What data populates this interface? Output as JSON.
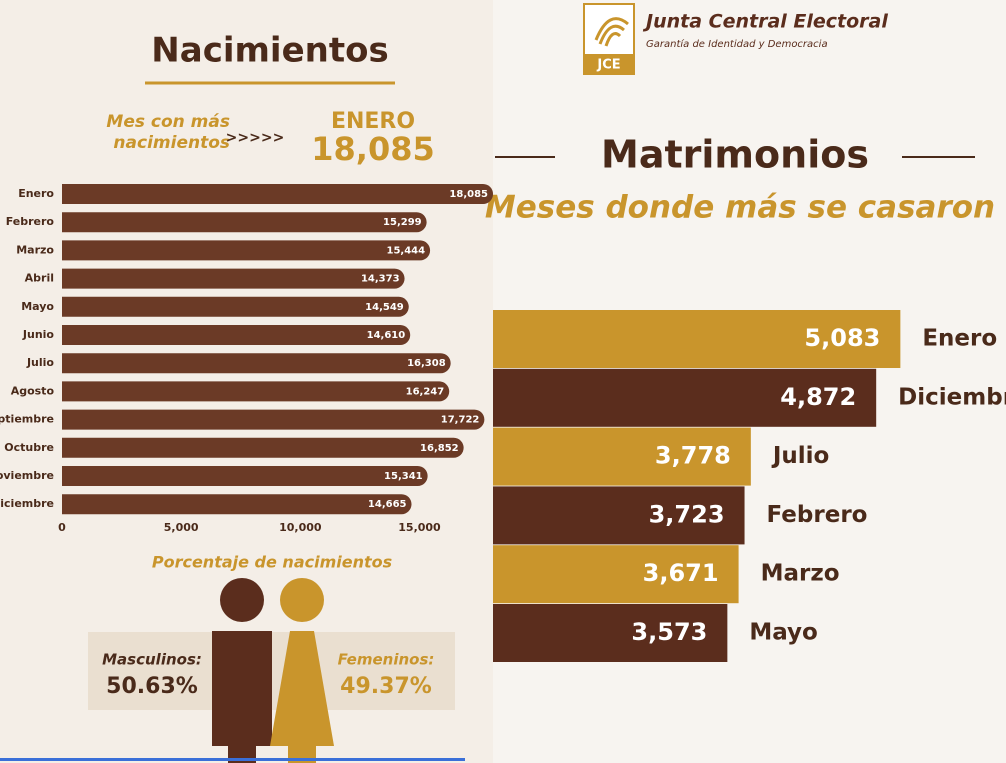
{
  "header": {
    "logo_mark": "JCE",
    "organization": "Junta Central Electoral",
    "tagline": "Garantía de Identidad y Democracia"
  },
  "births": {
    "title": "Nacimientos",
    "highlight_caption": "Mes con más nacimientos",
    "arrows": ">>>>>",
    "highlight_month": "ENERO",
    "highlight_value": "18,085",
    "percent_title": "Porcentaje de nacimientos",
    "male_label": "Masculinos:",
    "male_value": "50.63%",
    "female_label": "Femeninos:",
    "female_value": "49.37%"
  },
  "marriages": {
    "title": "Matrimonios",
    "subtitle": "Meses donde más se casaron"
  },
  "chart_data": [
    {
      "type": "hbar",
      "categories": [
        "Enero",
        "Febrero",
        "Marzo",
        "Abril",
        "Mayo",
        "Junio",
        "Julio",
        "Agosto",
        "Septiembre",
        "Octubre",
        "Noviembre",
        "Diciembre"
      ],
      "values": [
        18085,
        15299,
        15444,
        14373,
        14549,
        14610,
        16308,
        16247,
        17722,
        16852,
        15341,
        14665
      ],
      "value_labels": [
        "18,085",
        "15,299",
        "15,444",
        "14,373",
        "14,549",
        "14,610",
        "16,308",
        "16,247",
        "17,722",
        "16,852",
        "15,341",
        "14,665"
      ],
      "color": "#6b3a26",
      "xlim": [
        0,
        18000
      ],
      "xticks": [
        0,
        {
          "value": 5000,
          "label": "5,000"
        },
        {
          "value": 10000,
          "label": "10,000"
        },
        {
          "value": 15000,
          "label": "15,000"
        }
      ]
    },
    {
      "type": "hbar-big",
      "categories": [
        "Enero",
        "Diciembre",
        "Julio",
        "Febrero",
        "Marzo",
        "Mayo"
      ],
      "values": [
        5083,
        4872,
        3778,
        3723,
        3671,
        3573
      ],
      "value_labels": [
        "5,083",
        "4,872",
        "3,778",
        "3,723",
        "3,671",
        "3,573"
      ],
      "colors": [
        "#c9952c",
        "#5b2d1d",
        "#c9952c",
        "#5b2d1d",
        "#c9952c",
        "#5b2d1d"
      ]
    }
  ]
}
